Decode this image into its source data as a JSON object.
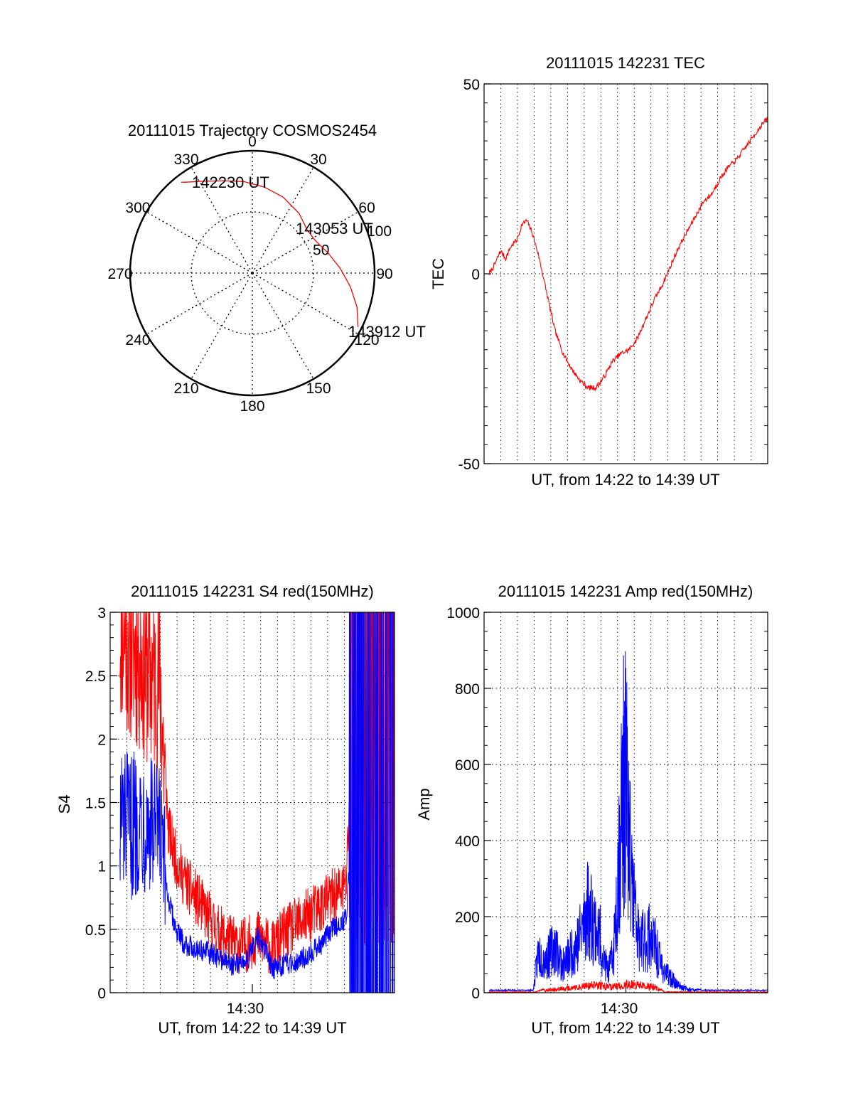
{
  "colors": {
    "red_series": "#ff0000",
    "blue_series": "#0000ff",
    "axes": "#000000",
    "grid": "#000000"
  },
  "chart_data": [
    {
      "id": "trajectory",
      "type": "polar",
      "title": "20111015 Trajectory COSMOS2454",
      "angle_labels": [
        "0",
        "30",
        "60",
        "90",
        "120",
        "150",
        "180",
        "210",
        "240",
        "270",
        "300",
        "330"
      ],
      "radial_labels": [
        "50",
        "100"
      ],
      "radial_values": [
        50,
        100
      ],
      "annotations": [
        "142230 UT",
        "143053 UT",
        "143912 UT"
      ],
      "series": [
        {
          "color": "red",
          "points": [
            {
              "azimuth": 323,
              "r": 93
            },
            {
              "azimuth": 332,
              "r": 85
            },
            {
              "azimuth": 343,
              "r": 79
            },
            {
              "azimuth": 355,
              "r": 75
            },
            {
              "azimuth": 8,
              "r": 71
            },
            {
              "azimuth": 22,
              "r": 67
            },
            {
              "azimuth": 38,
              "r": 62
            },
            {
              "azimuth": 52,
              "r": 57
            },
            {
              "azimuth": 63,
              "r": 58
            },
            {
              "azimuth": 75,
              "r": 64
            },
            {
              "azimuth": 87,
              "r": 72
            },
            {
              "azimuth": 98,
              "r": 81
            },
            {
              "azimuth": 108,
              "r": 90
            },
            {
              "azimuth": 117,
              "r": 97
            }
          ]
        }
      ]
    },
    {
      "id": "tec",
      "type": "line",
      "title": "20111015 142231 TEC",
      "xlabel": "UT, from 14:22 to 14:39 UT",
      "ylabel": "TEC",
      "ylim": [
        -50,
        50
      ],
      "yticks": [
        "-50",
        "0",
        "50"
      ],
      "grid": true,
      "xlim_minutes": [
        0,
        16.9
      ],
      "series": [
        {
          "color": "red",
          "x_minutes": [
            0.0,
            0.3,
            0.7,
            1.0,
            1.3,
            1.7,
            2.0,
            2.3,
            2.6,
            3.0,
            3.5,
            4.0,
            4.5,
            5.0,
            5.5,
            6.0,
            6.5,
            7.0,
            7.5,
            8.0,
            8.5,
            9.0,
            9.5,
            10.0,
            10.5,
            11.0,
            11.5,
            12.0,
            12.5,
            13.0,
            13.5,
            14.0,
            14.5,
            15.0,
            15.5,
            16.0,
            16.5,
            16.9
          ],
          "values": [
            0,
            2,
            6,
            4,
            7,
            9,
            13,
            14,
            11,
            5,
            -5,
            -15,
            -21,
            -25,
            -28,
            -30,
            -30,
            -27,
            -23,
            -21,
            -20,
            -17,
            -12,
            -7,
            -3,
            2,
            7,
            11,
            15,
            19,
            21,
            25,
            28,
            30,
            33,
            36,
            39,
            41
          ]
        }
      ]
    },
    {
      "id": "s4",
      "type": "line",
      "title": "20111015 142231 S4 red(150MHz)",
      "xlabel": "UT, from 14:22 to 14:39 UT",
      "ylabel": "S4",
      "ylim": [
        0,
        3
      ],
      "yticks": [
        "0",
        "0.5",
        "1",
        "1.5",
        "2",
        "2.5",
        "3"
      ],
      "xticks": [
        "14:30"
      ],
      "grid": true,
      "series": [
        {
          "color": "red",
          "x_minutes": [
            0,
            0.5,
            1,
            1.5,
            2,
            2.5,
            3,
            3.5,
            4,
            4.5,
            5,
            5.5,
            6,
            6.5,
            7,
            7.5,
            8,
            8.5,
            9,
            9.5,
            10,
            10.5,
            11,
            11.5,
            12,
            12.5,
            13,
            13.5,
            14,
            14.5,
            15,
            15.5,
            16,
            16.5,
            17
          ],
          "values": [
            2.9,
            2.8,
            2.7,
            2.6,
            2.5,
            2.4,
            1.2,
            0.95,
            0.8,
            0.7,
            0.6,
            0.5,
            0.4,
            0.35,
            0.3,
            0.28,
            0.3,
            0.35,
            0.3,
            0.25,
            0.35,
            0.4,
            0.45,
            0.5,
            0.55,
            0.6,
            0.65,
            0.7,
            0.75,
            2.4,
            2.6,
            2.7,
            2.8,
            2.7,
            2.6
          ]
        },
        {
          "color": "blue",
          "x_minutes": [
            0,
            0.5,
            1,
            1.5,
            2,
            2.5,
            3,
            3.5,
            4,
            4.5,
            5,
            5.5,
            6,
            6.5,
            7,
            7.5,
            8,
            8.5,
            9,
            9.5,
            10,
            10.5,
            11,
            11.5,
            12,
            12.5,
            13,
            13.5,
            14,
            14.5,
            15,
            15.5,
            16,
            16.5,
            17
          ],
          "values": [
            1.4,
            1.3,
            1.35,
            1.4,
            1.3,
            1.2,
            0.7,
            0.45,
            0.35,
            0.32,
            0.3,
            0.28,
            0.25,
            0.22,
            0.18,
            0.2,
            0.25,
            0.4,
            0.3,
            0.15,
            0.18,
            0.2,
            0.22,
            0.25,
            0.3,
            0.35,
            0.45,
            0.5,
            0.55,
            1.5,
            1.5,
            1.5,
            1.5,
            1.5,
            1.5
          ]
        }
      ]
    },
    {
      "id": "amp",
      "type": "line",
      "title": "20111015 142231 Amp red(150MHz)",
      "xlabel": "UT, from 14:22 to 14:39 UT",
      "ylabel": "Amp",
      "ylim": [
        0,
        1000
      ],
      "yticks": [
        "0",
        "200",
        "400",
        "600",
        "800",
        "1000"
      ],
      "xticks": [
        "14:30"
      ],
      "grid": true,
      "series": [
        {
          "color": "blue",
          "x_minutes": [
            0,
            1,
            2,
            2.7,
            3.0,
            3.5,
            4.0,
            4.5,
            5.0,
            5.5,
            6.0,
            6.5,
            6.8,
            7.0,
            7.3,
            7.6,
            8.0,
            8.3,
            8.6,
            8.9,
            9.0,
            9.2,
            9.5,
            9.8,
            10.1,
            10.4,
            10.7,
            11.0,
            11.5,
            12.0,
            12.5,
            13.0,
            14,
            15,
            16,
            17
          ],
          "values": [
            5,
            5,
            5,
            5,
            150,
            120,
            180,
            100,
            150,
            200,
            320,
            250,
            200,
            120,
            80,
            150,
            600,
            850,
            500,
            300,
            250,
            180,
            200,
            220,
            180,
            120,
            80,
            60,
            30,
            15,
            10,
            5,
            5,
            5,
            5,
            5
          ]
        },
        {
          "color": "red",
          "x_minutes": [
            0,
            2.8,
            3.5,
            4.5,
            5.5,
            6.5,
            7.5,
            8.5,
            9.5,
            10.2,
            10.7,
            17
          ],
          "values": [
            0,
            0,
            10,
            15,
            20,
            30,
            20,
            30,
            25,
            20,
            0,
            0
          ]
        }
      ]
    }
  ]
}
